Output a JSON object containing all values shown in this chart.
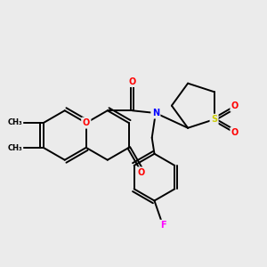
{
  "background_color": "#ebebeb",
  "bond_color": "#000000",
  "atom_colors": {
    "O": "#ff0000",
    "N": "#0000ff",
    "S": "#cccc00",
    "F": "#ff00ff",
    "C": "#000000"
  },
  "figsize": [
    3.0,
    3.0
  ],
  "dpi": 100,
  "xlim": [
    0,
    300
  ],
  "ylim": [
    0,
    300
  ]
}
